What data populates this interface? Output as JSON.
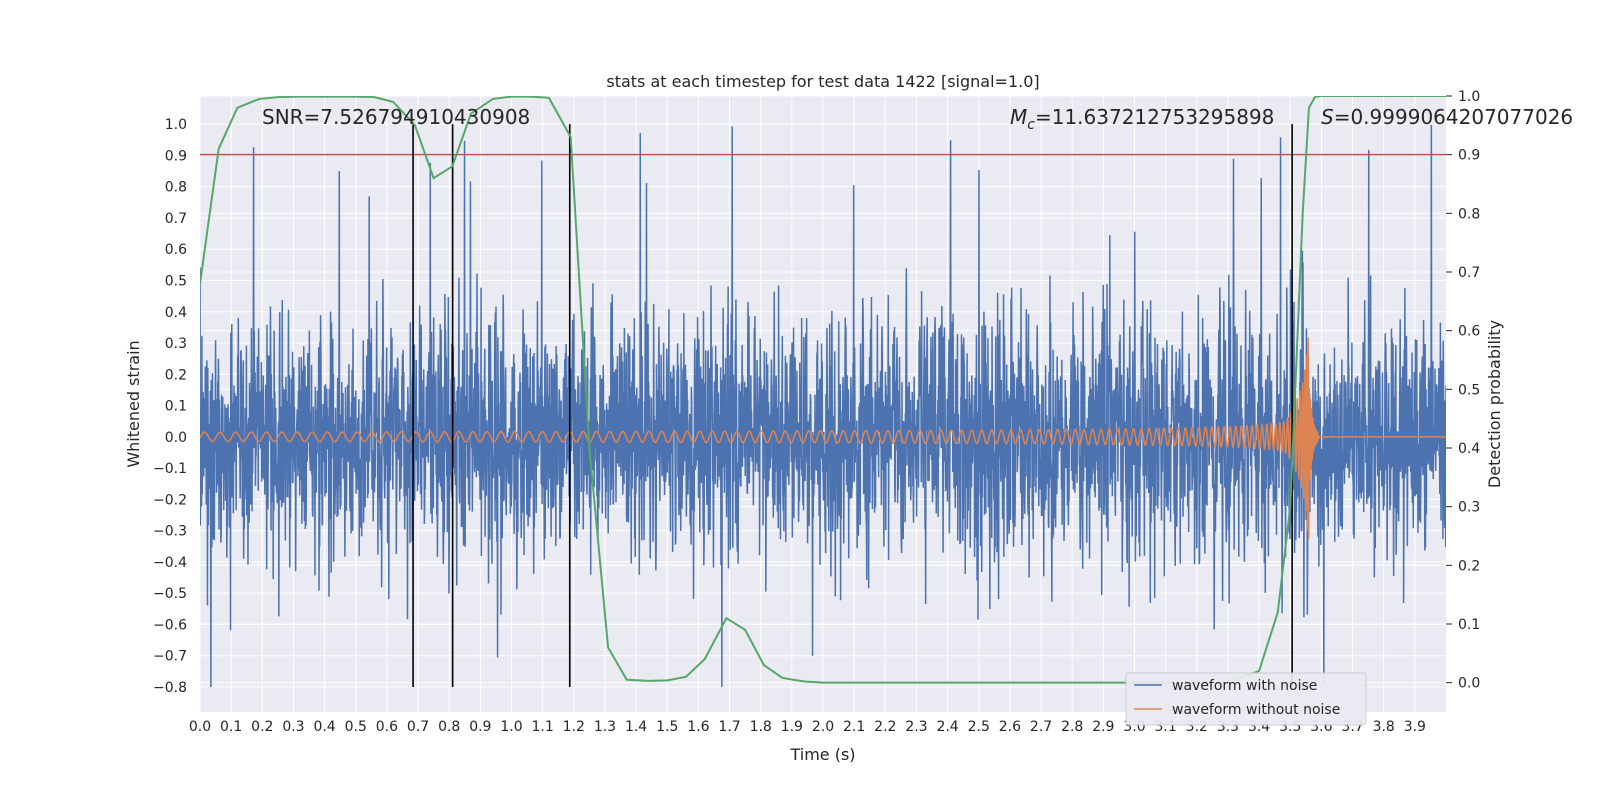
{
  "chart_data": {
    "type": "line",
    "title": "stats at each timestep for test data 1422 [signal=1.0]",
    "xlabel": "Time (s)",
    "ylabel": "Whitened strain",
    "y2label": "Detection probability",
    "xlim": [
      0.0,
      4.0
    ],
    "ylim": [
      -0.88,
      1.09
    ],
    "y2lim": [
      -0.05,
      1.0
    ],
    "x_ticks": [
      "0.0",
      "0.1",
      "0.2",
      "0.3",
      "0.4",
      "0.5",
      "0.6",
      "0.7",
      "0.8",
      "0.9",
      "1.0",
      "1.1",
      "1.2",
      "1.3",
      "1.4",
      "1.5",
      "1.6",
      "1.7",
      "1.8",
      "1.9",
      "2.0",
      "2.1",
      "2.2",
      "2.3",
      "2.4",
      "2.5",
      "2.6",
      "2.7",
      "2.8",
      "2.9",
      "3.0",
      "3.1",
      "3.2",
      "3.3",
      "3.4",
      "3.5",
      "3.6",
      "3.7",
      "3.8",
      "3.9"
    ],
    "y_ticks": [
      "1.0",
      "0.9",
      "0.8",
      "0.7",
      "0.6",
      "0.5",
      "0.4",
      "0.3",
      "0.2",
      "0.1",
      "0.0",
      "−0.1",
      "−0.2",
      "−0.3",
      "−0.4",
      "−0.5",
      "−0.6",
      "−0.7",
      "−0.8"
    ],
    "y2_ticks": [
      "1.0",
      "0.9",
      "0.8",
      "0.7",
      "0.6",
      "0.5",
      "0.4",
      "0.3",
      "0.2",
      "0.1",
      "0.0"
    ],
    "annotations": {
      "snr": "SNR=7.526794910430908",
      "mc_symbol": "M",
      "mc_sub": "c",
      "mc_value": "=11.637212753295898",
      "s_symbol": "S",
      "s_value": "=0.9999064207077026"
    },
    "threshold_y2": 0.9,
    "vlines_x": [
      0.684,
      0.811,
      1.187,
      3.506
    ],
    "vline_y_range": [
      -0.8,
      1.0
    ],
    "detection_probability": {
      "x": [
        0.0,
        0.06,
        0.12,
        0.19,
        0.25,
        0.31,
        0.37,
        0.44,
        0.5,
        0.56,
        0.62,
        0.69,
        0.75,
        0.81,
        0.87,
        0.94,
        1.0,
        1.06,
        1.12,
        1.19,
        1.25,
        1.31,
        1.37,
        1.44,
        1.5,
        1.56,
        1.62,
        1.69,
        1.75,
        1.81,
        1.87,
        1.94,
        2.0,
        2.5,
        3.0,
        3.3,
        3.4,
        3.46,
        3.5,
        3.52,
        3.54,
        3.56,
        3.58,
        3.6,
        3.7,
        3.8,
        3.9,
        4.0
      ],
      "values": [
        0.68,
        0.91,
        0.98,
        0.995,
        0.998,
        0.999,
        0.999,
        0.999,
        0.999,
        0.998,
        0.99,
        0.95,
        0.86,
        0.88,
        0.97,
        0.995,
        0.999,
        0.999,
        0.997,
        0.93,
        0.4,
        0.06,
        0.005,
        0.003,
        0.004,
        0.01,
        0.04,
        0.11,
        0.09,
        0.03,
        0.008,
        0.002,
        0.0,
        0.0,
        0.0,
        0.0,
        0.02,
        0.12,
        0.3,
        0.55,
        0.8,
        0.98,
        0.999,
        1.0,
        1.0,
        1.0,
        1.0,
        1.0
      ]
    },
    "series": [
      {
        "name": "waveform with noise",
        "color": "#4c72b0",
        "amplitude_range": [
          -0.8,
          1.0
        ],
        "peak_abs": 1.0
      },
      {
        "name": "waveform without noise",
        "color": "#dd8452",
        "amplitude_start": 0.015,
        "amplitude_peak": 0.33,
        "merger_time": 3.56
      }
    ],
    "legend": {
      "position": "lower-right",
      "entries": [
        "waveform with noise",
        "waveform without noise"
      ]
    },
    "colors": {
      "noise": "#4c72b0",
      "signal": "#dd8452",
      "prob": "#55a868",
      "threshold": "#c44e52",
      "vline": "#000000",
      "axes_bg": "#eaeaf2",
      "grid": "#ffffff"
    },
    "grid": true
  }
}
